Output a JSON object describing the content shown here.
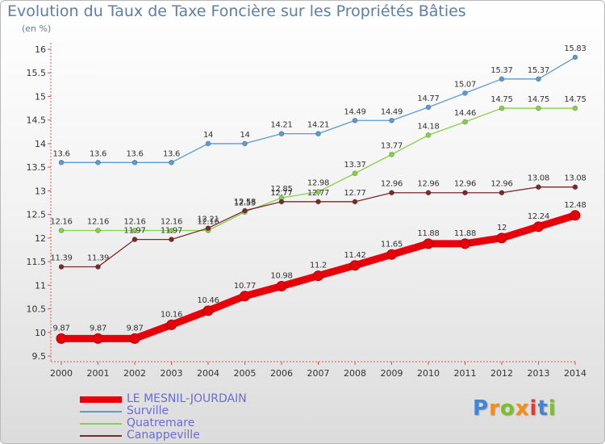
{
  "header": {
    "title": "Evolution du Taux de Taxe Foncière sur les Propriétés Bâties",
    "subtitle": "(en %)"
  },
  "brand": {
    "logo_text": "Proxiti"
  },
  "chart_data": {
    "type": "line",
    "title": "Evolution du Taux de Taxe Foncière sur les Propriétés Bâties",
    "ylabel": "(en %)",
    "xlabel": "",
    "x": [
      "2000",
      "2001",
      "2002",
      "2003",
      "2004",
      "2005",
      "2006",
      "2007",
      "2008",
      "2009",
      "2010",
      "2011",
      "2012",
      "2013",
      "2014"
    ],
    "ylim": [
      9.5,
      16
    ],
    "yticks": [
      "9.5",
      "10",
      "10.5",
      "11",
      "11.5",
      "12",
      "12.5",
      "13",
      "13.5",
      "14",
      "14.5",
      "15",
      "15.5",
      "16"
    ],
    "grid": false,
    "legend_position": "bottom-left",
    "series": [
      {
        "name": "LE MESNIL-JOURDAIN",
        "color": "#e8000b",
        "values": [
          9.87,
          9.87,
          9.87,
          10.16,
          10.46,
          10.77,
          10.98,
          11.2,
          11.42,
          11.65,
          11.88,
          11.88,
          12,
          12.24,
          12.48
        ],
        "labels": [
          "9.87",
          "9.87",
          "9.87",
          "10.16",
          "10.46",
          "10.77",
          "10.98",
          "11.2",
          "11.42",
          "11.65",
          "11.88",
          "11.88",
          "12",
          "12.24",
          "12.48"
        ]
      },
      {
        "name": "Surville",
        "color": "#5b9bd1",
        "values": [
          13.6,
          13.6,
          13.6,
          13.6,
          14,
          14,
          14.21,
          14.21,
          14.49,
          14.49,
          14.77,
          15.07,
          15.37,
          15.37,
          15.83
        ],
        "labels": [
          "13.6",
          "13.6",
          "13.6",
          "13.6",
          "14",
          "14",
          "14.21",
          "14.21",
          "14.49",
          "14.49",
          "14.77",
          "15.07",
          "15.37",
          "15.37",
          "15.83"
        ]
      },
      {
        "name": "Quatremare",
        "color": "#86d14a",
        "values": [
          12.16,
          12.16,
          12.16,
          12.16,
          12.16,
          12.55,
          12.85,
          12.98,
          13.37,
          13.77,
          14.18,
          14.46,
          14.75,
          14.75,
          14.75
        ],
        "labels": [
          "12.16",
          "12.16",
          "12.16",
          "12.16",
          "12.16",
          "12.55",
          "12.85",
          "12.98",
          "13.37",
          "13.77",
          "14.18",
          "14.46",
          "14.75",
          "14.75",
          "14.75"
        ]
      },
      {
        "name": "Canappeville",
        "color": "#7a2a2a",
        "values": [
          11.39,
          11.39,
          11.97,
          11.97,
          12.21,
          12.58,
          12.77,
          12.77,
          12.77,
          12.96,
          12.96,
          12.96,
          12.96,
          13.08,
          13.08
        ],
        "labels": [
          "11.39",
          "11.39",
          "11.97",
          "11.97",
          "12.21",
          "12.58",
          "12.77",
          "12.77",
          "12.77",
          "12.96",
          "12.96",
          "12.96",
          "12.96",
          "13.08",
          "13.08"
        ]
      }
    ]
  }
}
